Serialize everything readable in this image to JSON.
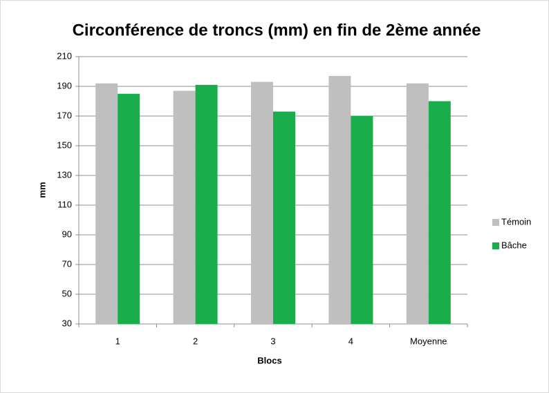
{
  "chart_data": {
    "type": "bar",
    "title": "Circonférence de troncs (mm) en fin de 2ème année",
    "x_label": "Blocs",
    "y_label": "mm",
    "categories": [
      "1",
      "2",
      "3",
      "4",
      "Moyenne"
    ],
    "series": [
      {
        "name": "Témoin",
        "color": "#bfbfbf",
        "values": [
          192,
          187,
          193,
          197,
          192
        ]
      },
      {
        "name": "Bâche",
        "color": "#19ad4b",
        "values": [
          185,
          191,
          173,
          170,
          180
        ]
      }
    ],
    "ylim": [
      30,
      210
    ],
    "yticks": [
      30,
      50,
      70,
      90,
      110,
      130,
      150,
      170,
      190,
      210
    ],
    "grid": true,
    "legend": "right"
  }
}
